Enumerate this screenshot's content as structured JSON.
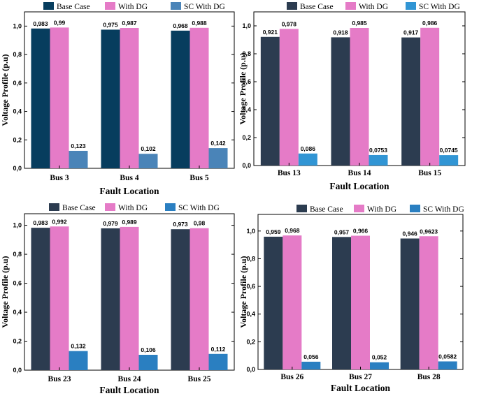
{
  "chart_data": [
    {
      "type": "bar",
      "title": "",
      "xlabel": "Fault Location",
      "ylabel": "Voltage Profile (p.u)",
      "ylim": [
        0,
        1.1
      ],
      "yticks": [
        "0,0",
        "0,2",
        "0,4",
        "0,6",
        "0,8",
        "1,0"
      ],
      "categories": [
        "Bus 3",
        "Bus 4",
        "Bus 5"
      ],
      "legend_position": "top",
      "grid": false,
      "series": [
        {
          "name": "Base Case",
          "color": "#073d5e",
          "values": [
            0.983,
            0.975,
            0.968
          ],
          "labels": [
            "0,983",
            "0,975",
            "0,968"
          ]
        },
        {
          "name": "With DG",
          "color": "#e57bc7",
          "values": [
            0.99,
            0.987,
            0.988
          ],
          "labels": [
            "0,99",
            "0,987",
            "0,988"
          ]
        },
        {
          "name": "SC With DG",
          "color": "#4a84b8",
          "values": [
            0.123,
            0.102,
            0.142
          ],
          "labels": [
            "0,123",
            "0,102",
            "0,142"
          ]
        }
      ]
    },
    {
      "type": "bar",
      "title": "",
      "xlabel": "Fault Location",
      "ylabel": "Voltage Profile (p.u)",
      "ylim": [
        0,
        1.1
      ],
      "yticks": [
        "0,0",
        "0,2",
        "0,4",
        "0,6",
        "0,8",
        "1,0"
      ],
      "categories": [
        "Bus 13",
        "Bus 14",
        "Bus 15"
      ],
      "legend_position": "top",
      "grid": false,
      "series": [
        {
          "name": "Base Case",
          "color": "#2c3c50",
          "values": [
            0.921,
            0.918,
            0.917
          ],
          "labels": [
            "0,921",
            "0,918",
            "0,917"
          ]
        },
        {
          "name": "With DG",
          "color": "#e57bc7",
          "values": [
            0.978,
            0.985,
            0.986
          ],
          "labels": [
            "0,978",
            "0,985",
            "0,986"
          ]
        },
        {
          "name": "SC With DG",
          "color": "#3195d4",
          "values": [
            0.086,
            0.0753,
            0.0745
          ],
          "labels": [
            "0,086",
            "0,0753",
            "0,0745"
          ]
        }
      ]
    },
    {
      "type": "bar",
      "title": "",
      "xlabel": "Fault Location",
      "ylabel": "Voltage Profile (p.u)",
      "ylim": [
        0,
        1.08
      ],
      "yticks": [
        "0,0",
        "0,2",
        "0,4",
        "0,6",
        "0,8",
        "1,0"
      ],
      "categories": [
        "Bus 23",
        "Bus 24",
        "Bus 25"
      ],
      "legend_position": "top",
      "grid": false,
      "series": [
        {
          "name": "Base Case",
          "color": "#2c3c50",
          "values": [
            0.983,
            0.979,
            0.973
          ],
          "labels": [
            "0,983",
            "0,979",
            "0,973"
          ]
        },
        {
          "name": "With DG",
          "color": "#e57bc7",
          "values": [
            0.992,
            0.989,
            0.98
          ],
          "labels": [
            "0,992",
            "0,989",
            "0,98"
          ]
        },
        {
          "name": "SC With DG",
          "color": "#2a7fc1",
          "values": [
            0.132,
            0.106,
            0.112
          ],
          "labels": [
            "0,132",
            "0,106",
            "0,112"
          ]
        }
      ]
    },
    {
      "type": "bar",
      "title": "",
      "xlabel": "Fault Location",
      "ylabel": "Voltage Profile (p.u)",
      "ylim": [
        0,
        1.12
      ],
      "yticks": [
        "0,0",
        "0,2",
        "0,4",
        "0,6",
        "0,8",
        "1,0"
      ],
      "categories": [
        "Bus 26",
        "Bus 27",
        "Bus 28"
      ],
      "legend_position": "top",
      "grid": false,
      "series": [
        {
          "name": "Base Case",
          "color": "#2c3c50",
          "values": [
            0.959,
            0.957,
            0.946
          ],
          "labels": [
            "0,959",
            "0,957",
            "0,946"
          ]
        },
        {
          "name": "With DG",
          "color": "#e57bc7",
          "values": [
            0.968,
            0.966,
            0.9623
          ],
          "labels": [
            "0,968",
            "0,966",
            "0,9623"
          ]
        },
        {
          "name": "SC With DG",
          "color": "#2a7fc1",
          "values": [
            0.056,
            0.052,
            0.0582
          ],
          "labels": [
            "0,056",
            "0,052",
            "0,0582"
          ]
        }
      ]
    }
  ]
}
